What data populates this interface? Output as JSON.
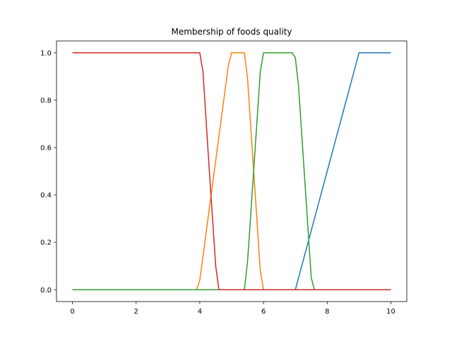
{
  "chart_data": {
    "type": "line",
    "title": "Membership of foods quality",
    "xlabel": "",
    "ylabel": "",
    "xlim": [
      -0.5,
      10.5
    ],
    "ylim": [
      -0.05,
      1.05
    ],
    "x_ticks": [
      0,
      2,
      4,
      6,
      8,
      10
    ],
    "x_tick_labels": [
      "0",
      "2",
      "4",
      "6",
      "8",
      "10"
    ],
    "y_ticks": [
      0.0,
      0.2,
      0.4,
      0.6,
      0.8,
      1.0
    ],
    "y_tick_labels": [
      "0.0",
      "0.2",
      "0.4",
      "0.6",
      "0.8",
      "1.0"
    ],
    "grid": false,
    "legend": "none",
    "series": [
      {
        "color": "#1f77b4",
        "x": [
          0,
          7.0,
          7.1,
          9.0,
          9.1,
          10
        ],
        "y": [
          0,
          0,
          0.05,
          1.0,
          1.0,
          1.0
        ]
      },
      {
        "color": "#ff7f0e",
        "x": [
          0,
          3.9,
          4.0,
          4.9,
          5.0,
          5.1,
          5.4,
          5.5,
          5.9,
          6.0,
          6.1,
          10
        ],
        "y": [
          0,
          0,
          0.04,
          0.95,
          1.0,
          1.0,
          1.0,
          0.89,
          0.08,
          0.0,
          0,
          0
        ]
      },
      {
        "color": "#2ca02c",
        "x": [
          0,
          5.4,
          5.5,
          5.9,
          6.0,
          6.1,
          6.9,
          7.0,
          7.1,
          7.5,
          7.6,
          10
        ],
        "y": [
          0,
          0,
          0.12,
          0.92,
          1.0,
          1.0,
          1.0,
          0.98,
          0.86,
          0.05,
          0,
          0
        ]
      },
      {
        "color": "#d62728",
        "x": [
          0,
          3.9,
          4.0,
          4.1,
          4.3,
          4.5,
          4.6,
          10
        ],
        "y": [
          1.0,
          1.0,
          1.0,
          0.92,
          0.5,
          0.1,
          0,
          0
        ]
      }
    ]
  }
}
